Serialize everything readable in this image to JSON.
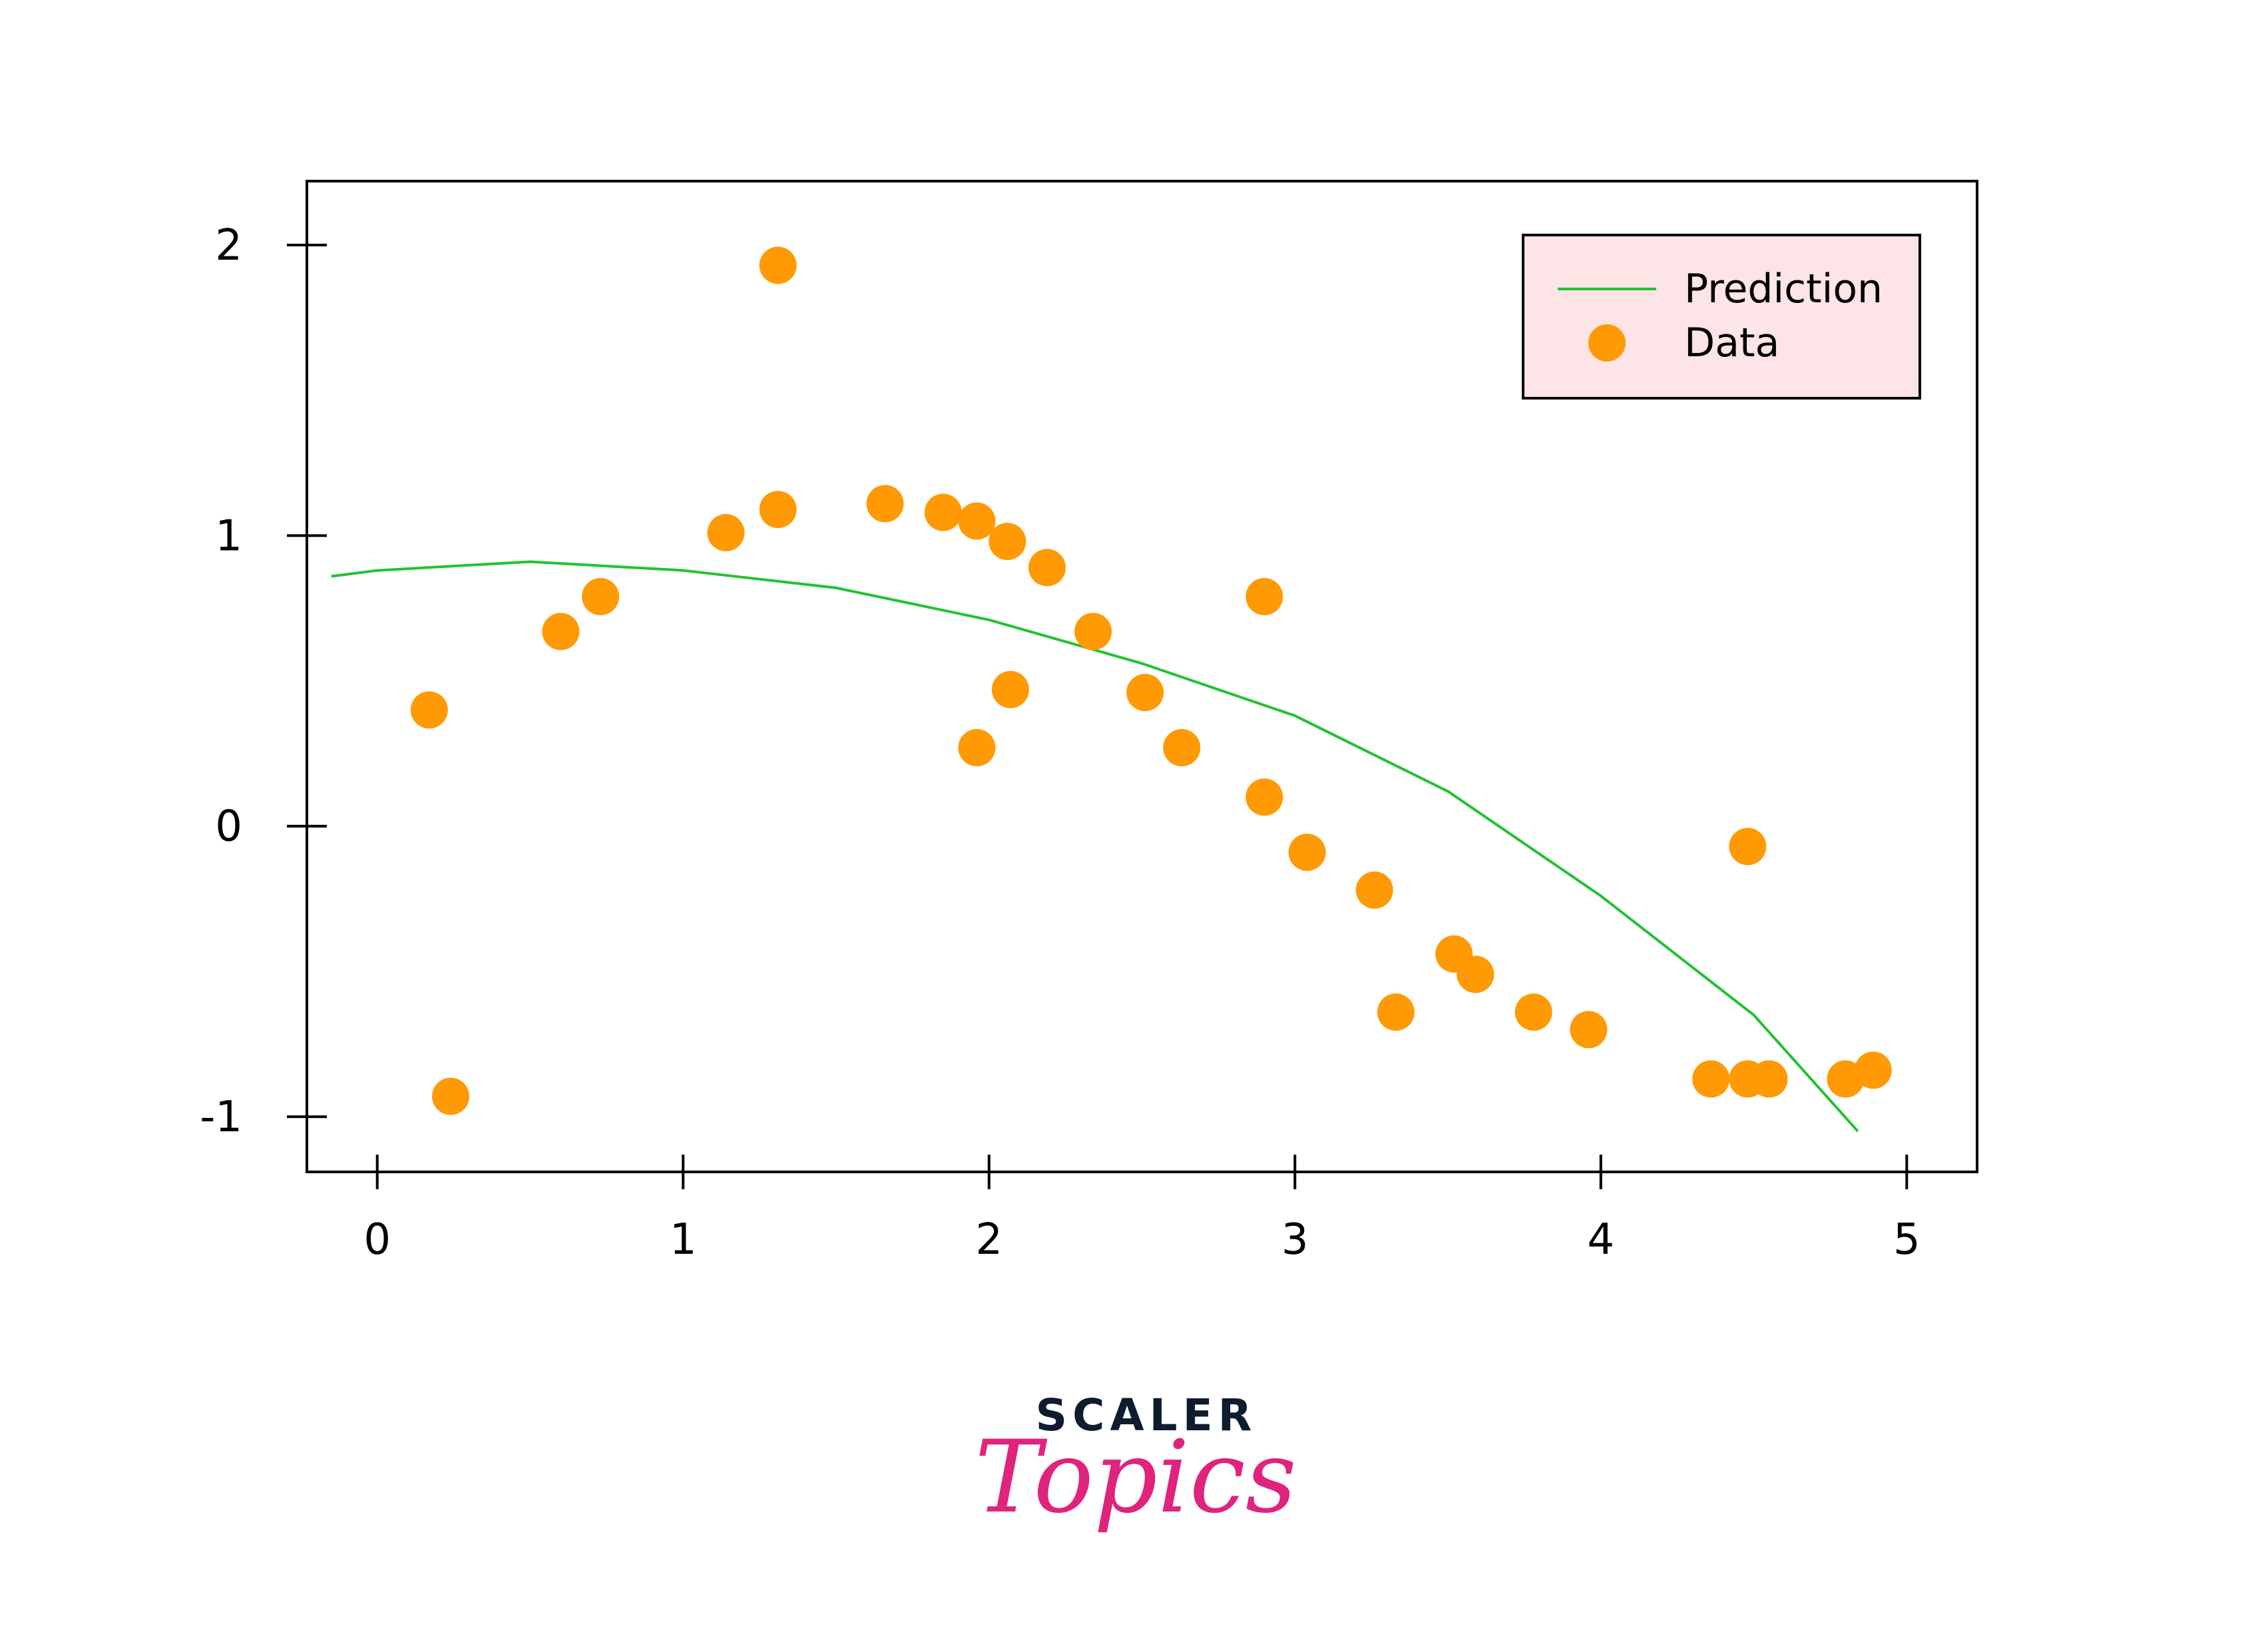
{
  "chart_data": {
    "type": "scatter",
    "title": "",
    "xlabel": "",
    "ylabel": "",
    "xlim": [
      -0.23,
      5.23
    ],
    "ylim": [
      -1.19,
      2.22
    ],
    "xticks": [
      0,
      1,
      2,
      3,
      4,
      5
    ],
    "yticks": [
      -1,
      0,
      1,
      2
    ],
    "xtick_labels": [
      "0",
      "1",
      "2",
      "3",
      "4",
      "5"
    ],
    "ytick_labels": [
      "-1",
      "0",
      "1",
      "2"
    ],
    "grid": false,
    "legend_position": "top-right",
    "legend_bg": "#fde4e6",
    "series": [
      {
        "name": "Prediction",
        "kind": "line",
        "color": "#22c232",
        "x": [
          -0.15,
          0.0,
          0.5,
          1.0,
          1.5,
          2.0,
          2.5,
          3.0,
          3.5,
          4.0,
          4.5,
          4.84
        ],
        "y": [
          0.86,
          0.88,
          0.91,
          0.88,
          0.82,
          0.71,
          0.56,
          0.38,
          0.12,
          -0.24,
          -0.65,
          -1.05
        ]
      },
      {
        "name": "Data",
        "kind": "scatter",
        "color": "#ff9a05",
        "x": [
          0.17,
          0.24,
          0.6,
          0.73,
          1.14,
          1.31,
          1.31,
          1.66,
          1.85,
          1.96,
          1.96,
          2.06,
          2.07,
          2.19,
          2.34,
          2.51,
          2.63,
          2.9,
          2.9,
          3.04,
          3.26,
          3.33,
          3.52,
          3.59,
          3.78,
          3.96,
          4.36,
          4.48,
          4.48,
          4.55,
          4.8,
          4.89
        ],
        "y": [
          0.4,
          -0.93,
          0.67,
          0.79,
          1.01,
          1.09,
          1.93,
          1.11,
          1.08,
          1.05,
          0.27,
          0.98,
          0.47,
          0.89,
          0.67,
          0.46,
          0.27,
          0.79,
          0.1,
          -0.09,
          -0.22,
          -0.64,
          -0.44,
          -0.51,
          -0.64,
          -0.7,
          -0.87,
          -0.87,
          -0.07,
          -0.87,
          -0.87,
          -0.84
        ]
      }
    ]
  },
  "logo": {
    "top_text": "SCALER",
    "script_text": "Topics",
    "top_color": "#0f1b2e",
    "script_color": "#e0237c"
  }
}
